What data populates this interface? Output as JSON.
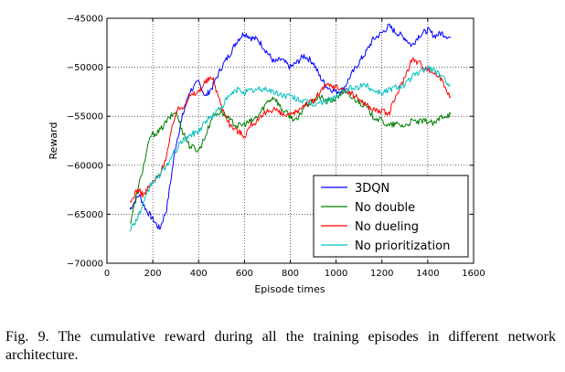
{
  "chart_data": {
    "type": "line",
    "xlabel": "Episode times",
    "ylabel": "Reward",
    "xlim": [
      0,
      1600
    ],
    "ylim": [
      -70000,
      -45000
    ],
    "xticks": [
      0,
      200,
      400,
      600,
      800,
      1000,
      1200,
      1400,
      1600
    ],
    "yticks": [
      -45000,
      -50000,
      -55000,
      -60000,
      -65000,
      -70000
    ],
    "xtick_labels": [
      "0",
      "200",
      "400",
      "600",
      "800",
      "1000",
      "1200",
      "1400",
      "1600"
    ],
    "ytick_labels": [
      "−45000",
      "−50000",
      "−55000",
      "−60000",
      "−65000",
      "−70000"
    ],
    "grid": true,
    "legend_position": "lower-right",
    "series": [
      {
        "name": "3DQN",
        "color": "#0000ff",
        "x": [
          100,
          140,
          170,
          200,
          230,
          260,
          300,
          330,
          360,
          400,
          430,
          460,
          500,
          540,
          570,
          600,
          630,
          660,
          700,
          730,
          760,
          800,
          830,
          860,
          900,
          930,
          960,
          1000,
          1030,
          1060,
          1100,
          1130,
          1160,
          1200,
          1230,
          1260,
          1300,
          1330,
          1360,
          1400,
          1430,
          1460,
          1500
        ],
        "y": [
          -64500,
          -63000,
          -64500,
          -65500,
          -66500,
          -64500,
          -58000,
          -55000,
          -52500,
          -51500,
          -53000,
          -52000,
          -50000,
          -48500,
          -47200,
          -46500,
          -47000,
          -47200,
          -48500,
          -49500,
          -49200,
          -50000,
          -49500,
          -48800,
          -49500,
          -51000,
          -52000,
          -52500,
          -52300,
          -51000,
          -49500,
          -48500,
          -47200,
          -46500,
          -45800,
          -46400,
          -47000,
          -47800,
          -46800,
          -46200,
          -46800,
          -46500,
          -47000
        ]
      },
      {
        "name": "No double",
        "color": "#008000",
        "x": [
          100,
          130,
          160,
          190,
          230,
          260,
          300,
          330,
          360,
          400,
          430,
          460,
          500,
          540,
          570,
          600,
          630,
          660,
          700,
          730,
          760,
          800,
          830,
          860,
          900,
          930,
          960,
          1000,
          1030,
          1060,
          1100,
          1130,
          1160,
          1200,
          1230,
          1260,
          1300,
          1330,
          1360,
          1400,
          1430,
          1460,
          1500
        ],
        "y": [
          -66000,
          -63000,
          -60000,
          -57000,
          -56500,
          -55500,
          -54500,
          -56500,
          -58000,
          -58500,
          -57000,
          -55000,
          -54500,
          -55500,
          -56000,
          -55800,
          -55500,
          -55000,
          -53500,
          -53000,
          -54200,
          -55000,
          -55500,
          -54000,
          -53500,
          -53000,
          -53500,
          -53200,
          -52500,
          -53000,
          -53500,
          -54000,
          -55000,
          -55500,
          -56000,
          -55800,
          -56000,
          -55500,
          -55600,
          -55500,
          -55800,
          -55000,
          -54800
        ]
      },
      {
        "name": "No dueling",
        "color": "#ff0000",
        "x": [
          100,
          130,
          160,
          190,
          230,
          260,
          300,
          330,
          360,
          400,
          430,
          460,
          500,
          540,
          570,
          600,
          630,
          660,
          700,
          730,
          760,
          800,
          830,
          860,
          900,
          930,
          960,
          1000,
          1030,
          1060,
          1100,
          1130,
          1160,
          1200,
          1230,
          1260,
          1300,
          1330,
          1360,
          1400,
          1430,
          1460,
          1500
        ],
        "y": [
          -64000,
          -62500,
          -63000,
          -62000,
          -61000,
          -59000,
          -54500,
          -54000,
          -53000,
          -52500,
          -51500,
          -51000,
          -54000,
          -56000,
          -56500,
          -57000,
          -55800,
          -55500,
          -54500,
          -54200,
          -54800,
          -55000,
          -54500,
          -53800,
          -53500,
          -52500,
          -51800,
          -52000,
          -52300,
          -52600,
          -53200,
          -53800,
          -54300,
          -54500,
          -54800,
          -53000,
          -51000,
          -49200,
          -49500,
          -50200,
          -50600,
          -51200,
          -53000
        ]
      },
      {
        "name": "No prioritization",
        "color": "#00bfbf",
        "x": [
          100,
          130,
          160,
          190,
          230,
          260,
          300,
          330,
          360,
          400,
          430,
          460,
          500,
          540,
          570,
          600,
          630,
          660,
          700,
          730,
          760,
          800,
          830,
          860,
          900,
          930,
          960,
          1000,
          1030,
          1060,
          1100,
          1130,
          1160,
          1200,
          1230,
          1260,
          1300,
          1330,
          1360,
          1400,
          1430,
          1460,
          1500
        ],
        "y": [
          -66500,
          -65500,
          -64000,
          -62000,
          -61000,
          -60000,
          -58500,
          -57500,
          -57000,
          -56500,
          -55500,
          -55000,
          -54000,
          -52800,
          -52300,
          -52500,
          -52400,
          -52300,
          -52200,
          -52600,
          -52800,
          -53000,
          -53200,
          -53500,
          -53800,
          -53600,
          -53400,
          -53000,
          -52500,
          -52200,
          -52000,
          -51800,
          -52300,
          -52600,
          -52300,
          -52000,
          -51800,
          -51000,
          -50600,
          -50000,
          -50300,
          -51000,
          -51800
        ]
      }
    ]
  },
  "caption": "Fig. 9.  The cumulative reward during all the training episodes in different network architecture."
}
